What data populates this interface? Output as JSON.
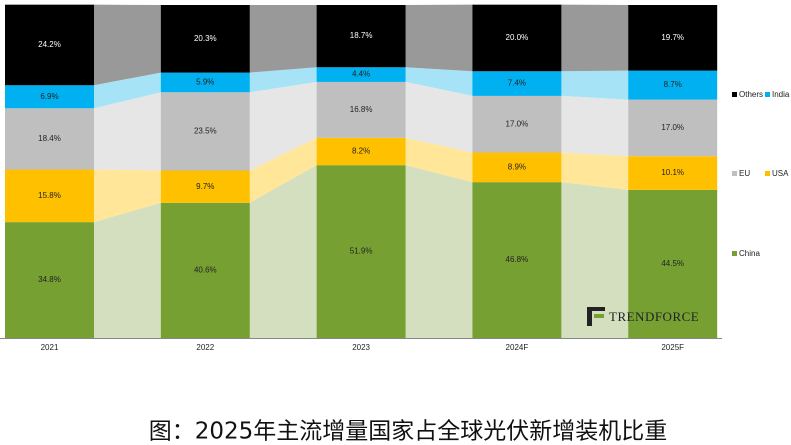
{
  "chart_data": {
    "type": "stacked_bar_100",
    "title": "图：2025年主流增量国家占全球光伏新增装机比重",
    "watermark": "TRENDFORCE",
    "categories": [
      "2021",
      "2022",
      "2023",
      "2024F",
      "2025F"
    ],
    "ylim": [
      0,
      100
    ],
    "series": [
      {
        "name": "China",
        "color": "#77a033",
        "band_color": "#d3dfbf",
        "values": [
          34.8,
          40.6,
          51.9,
          46.8,
          44.5
        ],
        "value_labels": [
          "34.8%",
          "40.6%",
          "51.9%",
          "46.8%",
          "44.5%"
        ]
      },
      {
        "name": "USA",
        "color": "#ffc000",
        "band_color": "#ffe699",
        "values": [
          15.8,
          9.7,
          8.2,
          8.9,
          10.1
        ],
        "value_labels": [
          "15.8%",
          "9.7%",
          "8.2%",
          "8.9%",
          "10.1%"
        ]
      },
      {
        "name": "EU",
        "color": "#bfbfbf",
        "band_color": "#e6e6e6",
        "values": [
          18.4,
          23.5,
          16.8,
          17.0,
          17.0
        ],
        "value_labels": [
          "18.4%",
          "23.5%",
          "16.8%",
          "17.0%",
          "17.0%"
        ]
      },
      {
        "name": "India",
        "color": "#00b0f0",
        "band_color": "#a6e3f7",
        "values": [
          6.9,
          5.9,
          4.4,
          7.4,
          8.7
        ],
        "value_labels": [
          "6.9%",
          "5.9%",
          "4.4%",
          "7.4%",
          "8.7%"
        ]
      },
      {
        "name": "Others",
        "color": "#000000",
        "band_color": "#999999",
        "values": [
          24.2,
          20.3,
          18.7,
          20.0,
          19.7
        ],
        "value_labels": [
          "24.2%",
          "20.3%",
          "18.7%",
          "20.0%",
          "19.7%"
        ]
      }
    ]
  }
}
